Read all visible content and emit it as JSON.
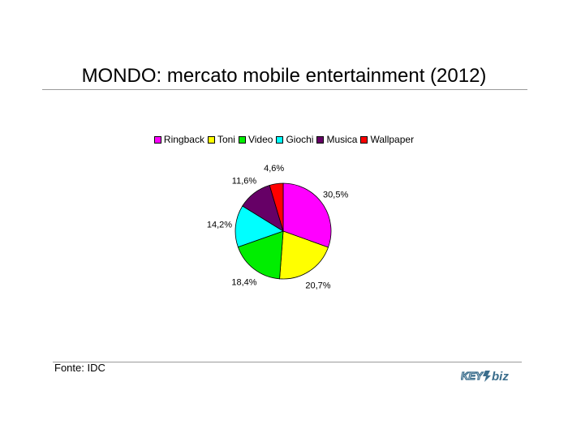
{
  "slide": {
    "title": "MONDO: mercato mobile entertainment (2012)",
    "source": "Fonte: IDC",
    "logo_text": "KEY4biz"
  },
  "chart_data": {
    "type": "pie",
    "categories": [
      "Ringback",
      "Toni",
      "Video",
      "Giochi",
      "Musica",
      "Wallpaper"
    ],
    "values": [
      30.5,
      20.7,
      18.4,
      14.2,
      11.6,
      4.6
    ],
    "labels": [
      "30,5%",
      "20,7%",
      "18,4%",
      "14,2%",
      "11,6%",
      "4,6%"
    ],
    "colors": [
      "#ff00ff",
      "#ffff00",
      "#00ee00",
      "#00ffff",
      "#660066",
      "#ff0000"
    ],
    "legend_position": "top",
    "title": ""
  }
}
